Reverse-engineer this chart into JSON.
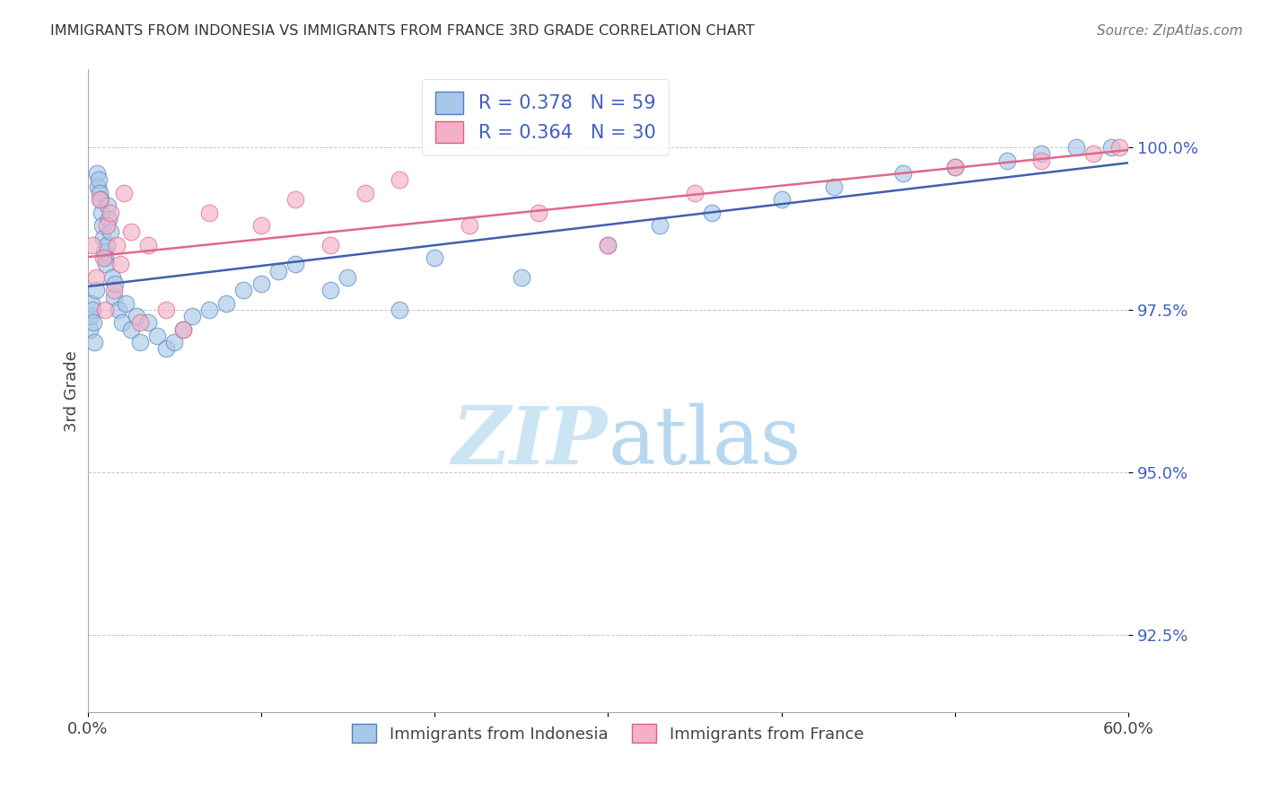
{
  "title": "IMMIGRANTS FROM INDONESIA VS IMMIGRANTS FROM FRANCE 3RD GRADE CORRELATION CHART",
  "source_text": "Source: ZipAtlas.com",
  "ylabel": "3rd Grade",
  "x_label_bottom": "Immigrants from Indonesia",
  "legend_label2": "Immigrants from France",
  "xlim": [
    0.0,
    60.0
  ],
  "ylim": [
    91.3,
    101.2
  ],
  "y_ticks": [
    92.5,
    95.0,
    97.5,
    100.0
  ],
  "y_tick_labels": [
    "92.5%",
    "95.0%",
    "97.5%",
    "100.0%"
  ],
  "R_blue": 0.378,
  "N_blue": 59,
  "R_pink": 0.364,
  "N_pink": 30,
  "blue_color": "#a8c8e8",
  "pink_color": "#f4b0c8",
  "blue_edge_color": "#5080c0",
  "pink_edge_color": "#e06080",
  "blue_line_color": "#4060b0",
  "pink_line_color": "#e06888",
  "label_color": "#4060c0",
  "background_color": "#ffffff",
  "watermark_color": "#cce5f5",
  "blue_x": [
    0.15,
    0.2,
    0.25,
    0.3,
    0.35,
    0.4,
    0.5,
    0.55,
    0.6,
    0.65,
    0.7,
    0.75,
    0.8,
    0.85,
    0.9,
    0.95,
    1.0,
    1.05,
    1.1,
    1.15,
    1.2,
    1.3,
    1.4,
    1.5,
    1.6,
    1.8,
    2.0,
    2.2,
    2.5,
    2.8,
    3.0,
    3.5,
    4.0,
    4.5,
    5.0,
    5.5,
    6.0,
    7.0,
    8.0,
    9.0,
    10.0,
    11.0,
    12.0,
    14.0,
    15.0,
    18.0,
    20.0,
    25.0,
    30.0,
    33.0,
    36.0,
    40.0,
    43.0,
    47.0,
    50.0,
    53.0,
    55.0,
    57.0,
    59.0
  ],
  "blue_y": [
    97.2,
    97.4,
    97.6,
    97.5,
    97.3,
    97.0,
    97.8,
    99.6,
    99.4,
    99.5,
    99.3,
    99.2,
    99.0,
    98.8,
    98.6,
    98.4,
    98.3,
    98.2,
    98.5,
    99.1,
    98.9,
    98.7,
    98.0,
    97.7,
    97.9,
    97.5,
    97.3,
    97.6,
    97.2,
    97.4,
    97.0,
    97.3,
    97.1,
    96.9,
    97.0,
    97.2,
    97.4,
    97.5,
    97.6,
    97.8,
    97.9,
    98.1,
    98.2,
    97.8,
    98.0,
    97.5,
    98.3,
    98.0,
    98.5,
    98.8,
    99.0,
    99.2,
    99.4,
    99.6,
    99.7,
    99.8,
    99.9,
    100.0,
    100.0
  ],
  "pink_x": [
    0.3,
    0.5,
    0.7,
    0.9,
    1.0,
    1.1,
    1.3,
    1.5,
    1.7,
    1.9,
    2.1,
    2.5,
    3.0,
    3.5,
    4.5,
    5.5,
    7.0,
    10.0,
    12.0,
    14.0,
    16.0,
    18.0,
    22.0,
    26.0,
    30.0,
    35.0,
    50.0,
    55.0,
    58.0,
    59.5
  ],
  "pink_y": [
    98.5,
    98.0,
    99.2,
    98.3,
    97.5,
    98.8,
    99.0,
    97.8,
    98.5,
    98.2,
    99.3,
    98.7,
    97.3,
    98.5,
    97.5,
    97.2,
    99.0,
    98.8,
    99.2,
    98.5,
    99.3,
    99.5,
    98.8,
    99.0,
    98.5,
    99.3,
    99.7,
    99.8,
    99.9,
    100.0
  ]
}
